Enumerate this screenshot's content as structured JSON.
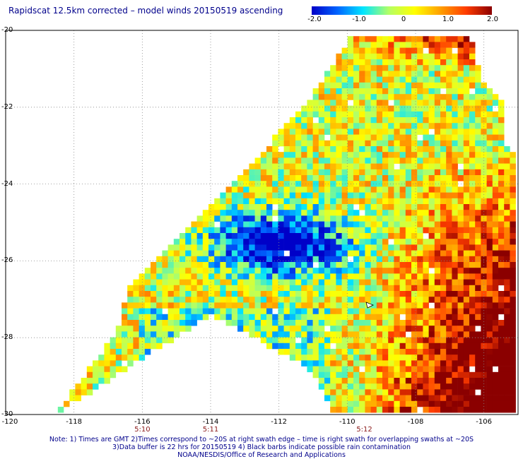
{
  "title": "Rapidscat 12.5km corrected – model winds 20150519 ascending",
  "colorbar": {
    "labels": [
      "-2.0",
      "-1.0",
      "0",
      "1.0",
      "2.0"
    ],
    "range": [
      -2.0,
      2.0
    ],
    "colors": [
      "#0000c8",
      "#0064ff",
      "#00e6ff",
      "#b4ff64",
      "#ffff00",
      "#ffa000",
      "#ff3c00",
      "#8b0000"
    ]
  },
  "map": {
    "lat_range": [
      -30,
      -20
    ],
    "lon_range": [
      -120,
      -105
    ],
    "lat_labels": [
      {
        "value": -20,
        "text": "-20"
      },
      {
        "value": -22,
        "text": "-22"
      },
      {
        "value": -24,
        "text": "-24"
      },
      {
        "value": -26,
        "text": "-26"
      },
      {
        "value": -28,
        "text": "-28"
      },
      {
        "value": -30,
        "text": "-30"
      }
    ],
    "lon_labels": [
      {
        "value": -120,
        "text": "-120"
      },
      {
        "value": -118,
        "text": "-118"
      },
      {
        "value": -116,
        "text": "-116"
      },
      {
        "value": -114,
        "text": "-114"
      },
      {
        "value": -112,
        "text": "-112"
      },
      {
        "value": -110,
        "text": "-110"
      },
      {
        "value": -108,
        "text": "-108"
      },
      {
        "value": -106,
        "text": "-106"
      }
    ],
    "time_labels": [
      {
        "lon": -116,
        "text": "5:10"
      },
      {
        "lon": -114,
        "text": "5:11"
      },
      {
        "lon": -109.5,
        "text": "5:12"
      }
    ],
    "grid_color": "#888888"
  },
  "footer": {
    "line1": "Note: 1) Times are GMT 2)Times correspond to ~20S at right swath edge – time is right swath for overlapping swaths at ~20S",
    "line2": "3)Data buffer is 22 hrs for 20150519 4) Black barbs indicate possible rain contamination",
    "line3": "NOAA/NESDIS/Office of Research and Applications"
  }
}
